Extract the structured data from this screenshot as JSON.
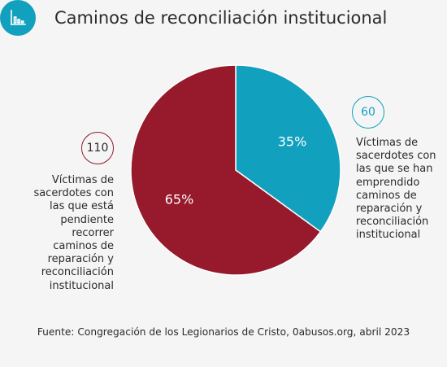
{
  "header": {
    "title": "Caminos de reconciliación institucional",
    "icon": "bar-chart-icon",
    "icon_color": "#12a0bf"
  },
  "chart_data": {
    "type": "pie",
    "title": "Caminos de reconciliación institucional",
    "slices": [
      {
        "label": "Víctimas de sacerdotes con las que se han emprendido caminos de reparación y reconciliación institucional",
        "count": "60",
        "value": 35,
        "value_label": "35%",
        "color": "#12a0bf"
      },
      {
        "label": "Víctimas de sacerdotes con las que está pendiente recorrer caminos de reparación y reconciliación institucional",
        "count": "110",
        "value": 65,
        "value_label": "65%",
        "color": "#961a2b"
      }
    ],
    "start_angle_deg": 0,
    "direction": "clockwise"
  },
  "annotations": {
    "left": {
      "count": "110",
      "lines": [
        "Víctimas de",
        "sacerdotes con",
        "las que está",
        "pendiente",
        "recorrer",
        "caminos de",
        "reparación y",
        "reconciliación",
        "institucional"
      ]
    },
    "right": {
      "count": "60",
      "lines": [
        "Víctimas de",
        "sacerdotes con",
        "las que se han",
        "emprendido",
        "caminos de",
        "reparación y",
        "reconciliación",
        "institucional"
      ]
    }
  },
  "footer": {
    "source": "Fuente: Congregación de los Legionarios de Cristo, 0abusos.org, abril 2023"
  }
}
